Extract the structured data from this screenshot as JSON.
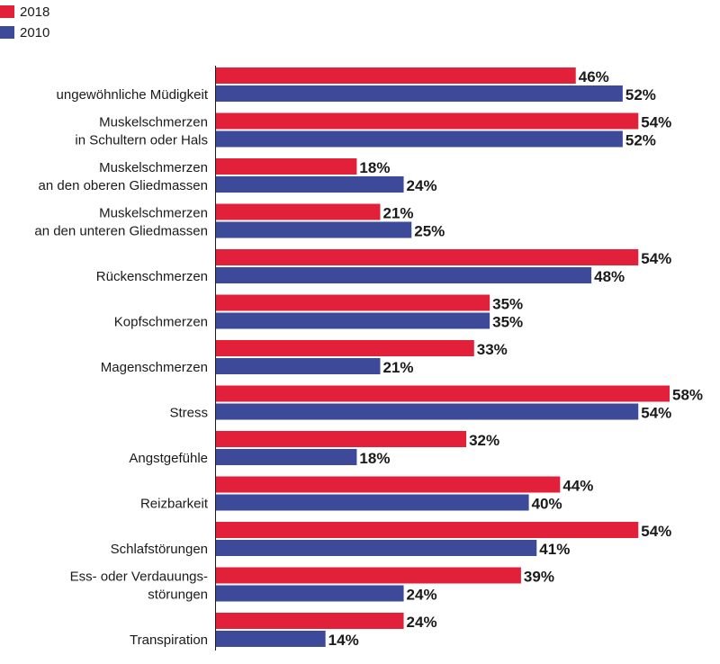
{
  "chart_data": {
    "type": "bar",
    "orientation": "horizontal",
    "title": "",
    "xlabel": "",
    "ylabel": "",
    "unit": "%",
    "xlim": [
      0,
      60
    ],
    "grid": false,
    "legend_position": "top-left",
    "colors": {
      "2018": "#e3203a",
      "2010": "#3d4a9a"
    },
    "categories": [
      [
        "ungewöhnliche Müdigkeit"
      ],
      [
        "Muskelschmerzen",
        "in Schultern oder Hals"
      ],
      [
        "Muskelschmerzen",
        "an den oberen Gliedmassen"
      ],
      [
        "Muskelschmerzen",
        "an den unteren Gliedmassen"
      ],
      [
        "Rückenschmerzen"
      ],
      [
        "Kopfschmerzen"
      ],
      [
        "Magenschmerzen"
      ],
      [
        "Stress"
      ],
      [
        "Angstgefühle"
      ],
      [
        "Reizbarkeit"
      ],
      [
        "Schlafstörungen"
      ],
      [
        "Ess- oder Verdauungs-",
        "störungen"
      ],
      [
        "Transpiration"
      ]
    ],
    "series": [
      {
        "name": "2018",
        "values": [
          46,
          54,
          18,
          21,
          54,
          35,
          33,
          58,
          32,
          44,
          54,
          39,
          24
        ]
      },
      {
        "name": "2010",
        "values": [
          52,
          52,
          24,
          25,
          48,
          35,
          21,
          54,
          18,
          40,
          41,
          24,
          14
        ]
      }
    ]
  }
}
